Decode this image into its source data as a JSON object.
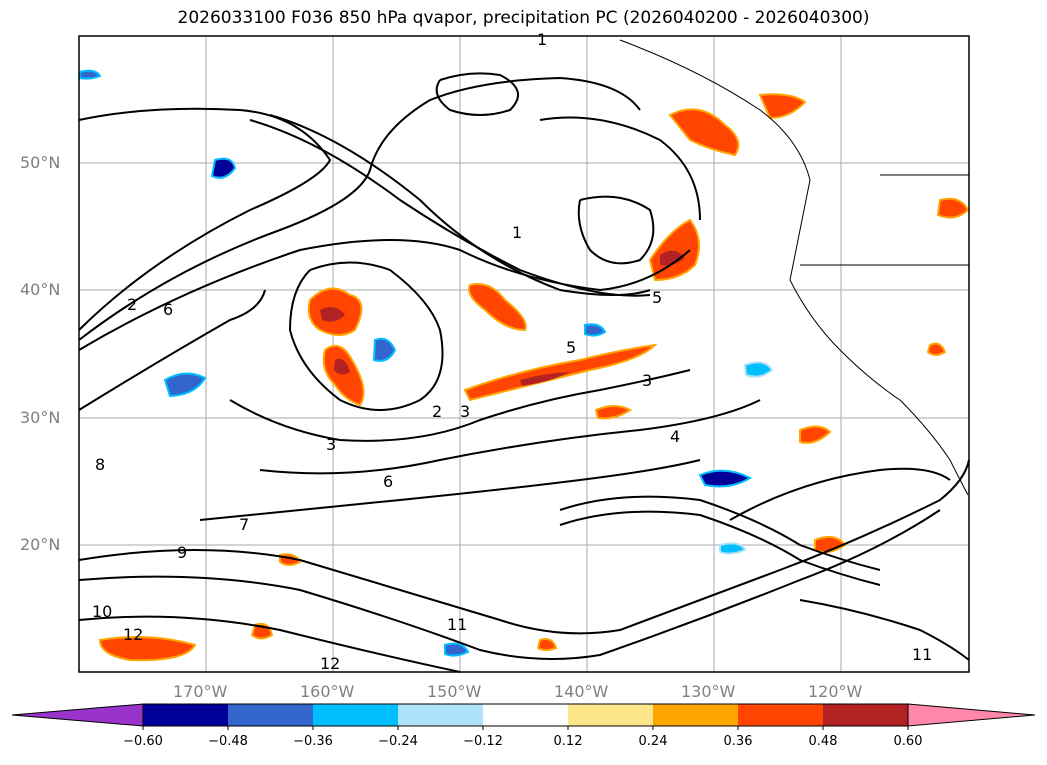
{
  "title": "2026033100 F036 850 hPa qvapor, precipitation PC (2026040200 - 2026040300)",
  "map": {
    "lat_labels": [
      "50°N",
      "40°N",
      "30°N",
      "20°N"
    ],
    "lon_labels": [
      "170°W",
      "160°W",
      "150°W",
      "140°W",
      "130°W",
      "120°W"
    ],
    "contour_labels": [
      "1",
      "1",
      "2",
      "2",
      "3",
      "3",
      "3",
      "4",
      "5",
      "5",
      "6",
      "6",
      "7",
      "8",
      "9",
      "10",
      "11",
      "11",
      "12",
      "12"
    ]
  },
  "colorbar": {
    "colors": [
      "#9933cc",
      "#000099",
      "#3366cc",
      "#00bfff",
      "#aee2fa",
      "#ffffff",
      "#fde68a",
      "#ffa500",
      "#ff4500",
      "#b22222",
      "#ff88aa"
    ],
    "tick_labels": [
      "−0.60",
      "−0.48",
      "−0.36",
      "−0.24",
      "−0.12",
      "0.12",
      "0.24",
      "0.36",
      "0.48",
      "0.60"
    ]
  }
}
